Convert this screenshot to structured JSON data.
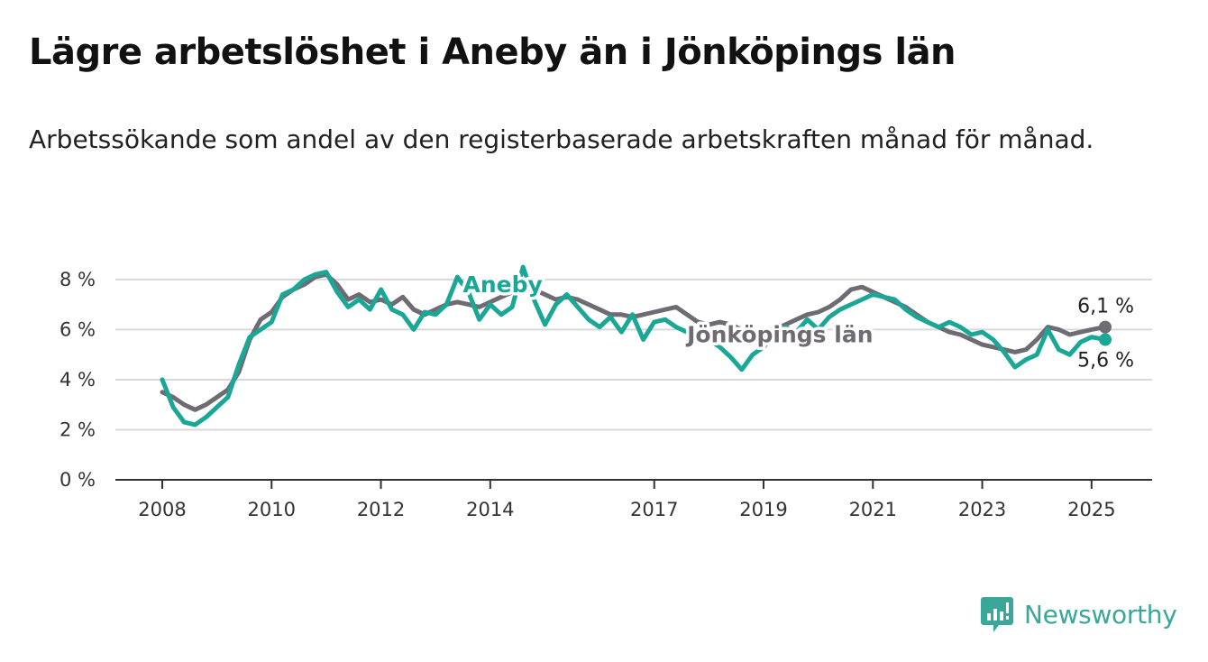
{
  "title": "Lägre arbetslöshet i Aneby än i Jönköpings län",
  "subtitle": "Arbetssökande som andel av den registerbaserade arbetskraften månad för månad.",
  "brand": {
    "name": "Newsworthy",
    "icon": "newsworthy-logo-icon",
    "color": "#3aa79a"
  },
  "chart_data": {
    "type": "line",
    "x_axis": {
      "ticks": [
        "2008",
        "2010",
        "2012",
        "2014",
        "2017",
        "2019",
        "2021",
        "2023",
        "2025"
      ],
      "range": [
        2008,
        2025.25
      ]
    },
    "y_axis": {
      "ticks": [
        0,
        2,
        4,
        6,
        8
      ],
      "tick_labels": [
        "0 %",
        "2 %",
        "4 %",
        "6 %",
        "8 %"
      ],
      "range": [
        0,
        8.5
      ]
    },
    "grid": true,
    "legend": "inline labels",
    "series": [
      {
        "name": "Jönköpings län",
        "color": "#6e6c72",
        "end_label": "6,1 %",
        "points": [
          [
            2008.0,
            3.5
          ],
          [
            2008.2,
            3.3
          ],
          [
            2008.4,
            3.0
          ],
          [
            2008.6,
            2.8
          ],
          [
            2008.8,
            3.0
          ],
          [
            2009.0,
            3.3
          ],
          [
            2009.2,
            3.6
          ],
          [
            2009.4,
            4.3
          ],
          [
            2009.6,
            5.6
          ],
          [
            2009.8,
            6.4
          ],
          [
            2010.0,
            6.7
          ],
          [
            2010.2,
            7.3
          ],
          [
            2010.4,
            7.6
          ],
          [
            2010.6,
            7.8
          ],
          [
            2010.8,
            8.1
          ],
          [
            2011.0,
            8.2
          ],
          [
            2011.2,
            7.8
          ],
          [
            2011.4,
            7.2
          ],
          [
            2011.6,
            7.4
          ],
          [
            2011.8,
            7.1
          ],
          [
            2012.0,
            7.2
          ],
          [
            2012.2,
            7.0
          ],
          [
            2012.4,
            7.3
          ],
          [
            2012.6,
            6.8
          ],
          [
            2012.8,
            6.6
          ],
          [
            2013.0,
            6.8
          ],
          [
            2013.2,
            7.0
          ],
          [
            2013.4,
            7.1
          ],
          [
            2013.6,
            7.0
          ],
          [
            2013.8,
            6.9
          ],
          [
            2014.0,
            7.1
          ],
          [
            2014.2,
            7.3
          ],
          [
            2014.4,
            7.5
          ],
          [
            2014.6,
            7.7
          ],
          [
            2014.8,
            7.6
          ],
          [
            2015.0,
            7.4
          ],
          [
            2015.2,
            7.2
          ],
          [
            2015.4,
            7.3
          ],
          [
            2015.6,
            7.2
          ],
          [
            2015.8,
            7.0
          ],
          [
            2016.0,
            6.8
          ],
          [
            2016.2,
            6.6
          ],
          [
            2016.4,
            6.6
          ],
          [
            2016.6,
            6.5
          ],
          [
            2016.8,
            6.6
          ],
          [
            2017.0,
            6.7
          ],
          [
            2017.2,
            6.8
          ],
          [
            2017.4,
            6.9
          ],
          [
            2017.6,
            6.6
          ],
          [
            2017.8,
            6.3
          ],
          [
            2018.0,
            6.2
          ],
          [
            2018.2,
            6.3
          ],
          [
            2018.4,
            6.2
          ],
          [
            2018.6,
            6.0
          ],
          [
            2018.8,
            5.9
          ],
          [
            2019.0,
            5.9
          ],
          [
            2019.2,
            6.0
          ],
          [
            2019.4,
            6.2
          ],
          [
            2019.6,
            6.4
          ],
          [
            2019.8,
            6.6
          ],
          [
            2020.0,
            6.7
          ],
          [
            2020.2,
            6.9
          ],
          [
            2020.4,
            7.2
          ],
          [
            2020.6,
            7.6
          ],
          [
            2020.8,
            7.7
          ],
          [
            2021.0,
            7.5
          ],
          [
            2021.2,
            7.3
          ],
          [
            2021.4,
            7.1
          ],
          [
            2021.6,
            6.9
          ],
          [
            2021.8,
            6.6
          ],
          [
            2022.0,
            6.3
          ],
          [
            2022.2,
            6.1
          ],
          [
            2022.4,
            5.9
          ],
          [
            2022.6,
            5.8
          ],
          [
            2022.8,
            5.6
          ],
          [
            2023.0,
            5.4
          ],
          [
            2023.2,
            5.3
          ],
          [
            2023.4,
            5.2
          ],
          [
            2023.6,
            5.1
          ],
          [
            2023.8,
            5.2
          ],
          [
            2024.0,
            5.6
          ],
          [
            2024.2,
            6.1
          ],
          [
            2024.4,
            6.0
          ],
          [
            2024.6,
            5.8
          ],
          [
            2024.8,
            5.9
          ],
          [
            2025.0,
            6.0
          ],
          [
            2025.25,
            6.1
          ]
        ]
      },
      {
        "name": "Aneby",
        "color": "#1aa796",
        "end_label": "5,6 %",
        "points": [
          [
            2008.0,
            4.0
          ],
          [
            2008.2,
            2.9
          ],
          [
            2008.4,
            2.3
          ],
          [
            2008.6,
            2.2
          ],
          [
            2008.8,
            2.5
          ],
          [
            2009.0,
            2.9
          ],
          [
            2009.2,
            3.3
          ],
          [
            2009.4,
            4.6
          ],
          [
            2009.6,
            5.7
          ],
          [
            2009.8,
            6.0
          ],
          [
            2010.0,
            6.3
          ],
          [
            2010.2,
            7.4
          ],
          [
            2010.4,
            7.6
          ],
          [
            2010.6,
            8.0
          ],
          [
            2010.8,
            8.2
          ],
          [
            2011.0,
            8.3
          ],
          [
            2011.2,
            7.5
          ],
          [
            2011.4,
            6.9
          ],
          [
            2011.6,
            7.2
          ],
          [
            2011.8,
            6.8
          ],
          [
            2012.0,
            7.6
          ],
          [
            2012.2,
            6.8
          ],
          [
            2012.4,
            6.6
          ],
          [
            2012.6,
            6.0
          ],
          [
            2012.8,
            6.7
          ],
          [
            2013.0,
            6.6
          ],
          [
            2013.2,
            7.0
          ],
          [
            2013.4,
            8.1
          ],
          [
            2013.6,
            7.5
          ],
          [
            2013.8,
            6.4
          ],
          [
            2014.0,
            7.0
          ],
          [
            2014.2,
            6.6
          ],
          [
            2014.4,
            6.9
          ],
          [
            2014.6,
            8.5
          ],
          [
            2014.8,
            7.2
          ],
          [
            2015.0,
            6.2
          ],
          [
            2015.2,
            7.0
          ],
          [
            2015.4,
            7.4
          ],
          [
            2015.6,
            6.9
          ],
          [
            2015.8,
            6.4
          ],
          [
            2016.0,
            6.1
          ],
          [
            2016.2,
            6.5
          ],
          [
            2016.4,
            5.9
          ],
          [
            2016.6,
            6.6
          ],
          [
            2016.8,
            5.6
          ],
          [
            2017.0,
            6.3
          ],
          [
            2017.2,
            6.4
          ],
          [
            2017.4,
            6.1
          ],
          [
            2017.6,
            5.9
          ],
          [
            2017.8,
            5.7
          ],
          [
            2018.0,
            5.6
          ],
          [
            2018.2,
            5.3
          ],
          [
            2018.4,
            4.9
          ],
          [
            2018.6,
            4.4
          ],
          [
            2018.8,
            5.0
          ],
          [
            2019.0,
            5.3
          ],
          [
            2019.2,
            5.8
          ],
          [
            2019.4,
            6.1
          ],
          [
            2019.6,
            5.9
          ],
          [
            2019.8,
            6.4
          ],
          [
            2020.0,
            6.0
          ],
          [
            2020.2,
            6.5
          ],
          [
            2020.4,
            6.8
          ],
          [
            2020.6,
            7.0
          ],
          [
            2020.8,
            7.2
          ],
          [
            2021.0,
            7.4
          ],
          [
            2021.2,
            7.3
          ],
          [
            2021.4,
            7.2
          ],
          [
            2021.6,
            6.8
          ],
          [
            2021.8,
            6.5
          ],
          [
            2022.0,
            6.3
          ],
          [
            2022.2,
            6.1
          ],
          [
            2022.4,
            6.3
          ],
          [
            2022.6,
            6.1
          ],
          [
            2022.8,
            5.8
          ],
          [
            2023.0,
            5.9
          ],
          [
            2023.2,
            5.6
          ],
          [
            2023.4,
            5.1
          ],
          [
            2023.6,
            4.5
          ],
          [
            2023.8,
            4.8
          ],
          [
            2024.0,
            5.0
          ],
          [
            2024.2,
            6.0
          ],
          [
            2024.4,
            5.2
          ],
          [
            2024.6,
            5.0
          ],
          [
            2024.8,
            5.5
          ],
          [
            2025.0,
            5.7
          ],
          [
            2025.25,
            5.6
          ]
        ]
      }
    ]
  }
}
